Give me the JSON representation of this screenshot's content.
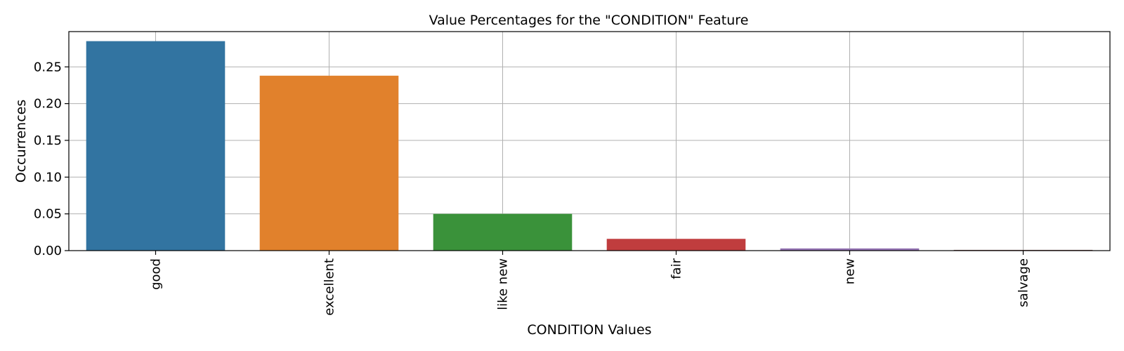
{
  "chart_data": {
    "type": "bar",
    "title": "Value Percentages for the \"CONDITION\" Feature",
    "xlabel": "CONDITION Values",
    "ylabel": "Occurrences",
    "categories": [
      "good",
      "excellent",
      "like new",
      "fair",
      "new",
      "salvage"
    ],
    "values": [
      0.285,
      0.238,
      0.05,
      0.016,
      0.003,
      0.001
    ],
    "colors": [
      "#3274a1",
      "#e1812c",
      "#3a923a",
      "#c03d3e",
      "#9372b2",
      "#845b53"
    ],
    "ylim": [
      0,
      0.298
    ],
    "yticks": [
      0.0,
      0.05,
      0.1,
      0.15,
      0.2,
      0.25
    ],
    "ytick_labels": [
      "0.00",
      "0.05",
      "0.10",
      "0.15",
      "0.20",
      "0.25"
    ],
    "grid": true,
    "legend": "none"
  }
}
